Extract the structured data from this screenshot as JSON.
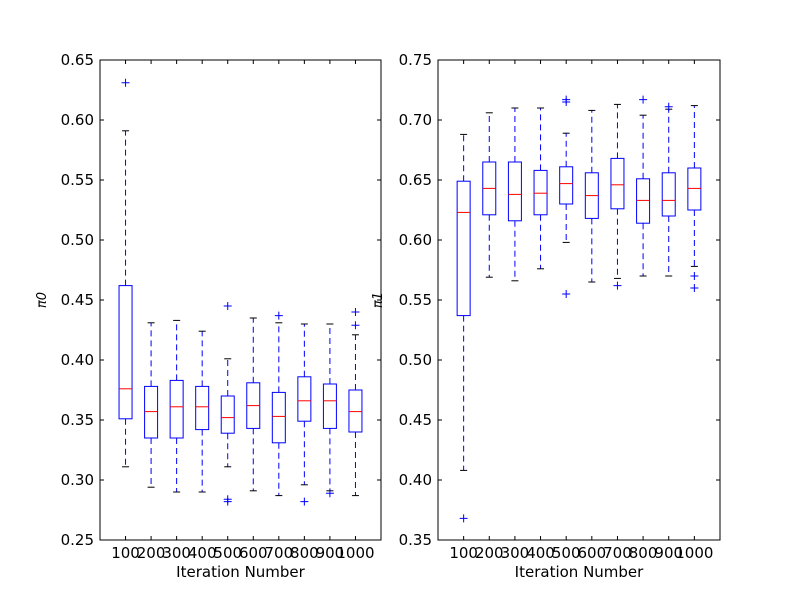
{
  "chart_data": [
    {
      "type": "boxplot",
      "xlabel": "Iteration Number",
      "ylabel": "π0",
      "ylim": [
        0.25,
        0.65
      ],
      "yticks": [
        "0.25",
        "0.30",
        "0.35",
        "0.40",
        "0.45",
        "0.50",
        "0.55",
        "0.60",
        "0.65"
      ],
      "categories": [
        "100",
        "200",
        "300",
        "400",
        "500",
        "600",
        "700",
        "800",
        "900",
        "1000"
      ],
      "grid": false,
      "colors": {
        "box": "#0000ff",
        "median": "#ff0000",
        "cap": "#000000",
        "flier": "#0000ff"
      },
      "boxes": [
        {
          "whislo": 0.311,
          "q1": 0.351,
          "med": 0.376,
          "q3": 0.462,
          "whishi": 0.591,
          "fliers": [
            0.631
          ]
        },
        {
          "whislo": 0.294,
          "q1": 0.335,
          "med": 0.357,
          "q3": 0.378,
          "whishi": 0.431,
          "fliers": []
        },
        {
          "whislo": 0.29,
          "q1": 0.335,
          "med": 0.361,
          "q3": 0.383,
          "whishi": 0.433,
          "fliers": []
        },
        {
          "whislo": 0.29,
          "q1": 0.342,
          "med": 0.361,
          "q3": 0.378,
          "whishi": 0.424,
          "fliers": []
        },
        {
          "whislo": 0.311,
          "q1": 0.339,
          "med": 0.352,
          "q3": 0.37,
          "whishi": 0.401,
          "fliers": [
            0.445,
            0.284,
            0.282
          ]
        },
        {
          "whislo": 0.291,
          "q1": 0.343,
          "med": 0.362,
          "q3": 0.381,
          "whishi": 0.435,
          "fliers": []
        },
        {
          "whislo": 0.287,
          "q1": 0.331,
          "med": 0.353,
          "q3": 0.373,
          "whishi": 0.431,
          "fliers": [
            0.437
          ]
        },
        {
          "whislo": 0.296,
          "q1": 0.349,
          "med": 0.366,
          "q3": 0.386,
          "whishi": 0.43,
          "fliers": [
            0.282
          ]
        },
        {
          "whislo": 0.291,
          "q1": 0.343,
          "med": 0.366,
          "q3": 0.38,
          "whishi": 0.43,
          "fliers": [
            0.289
          ]
        },
        {
          "whislo": 0.287,
          "q1": 0.34,
          "med": 0.357,
          "q3": 0.375,
          "whishi": 0.421,
          "fliers": [
            0.44,
            0.429
          ]
        }
      ]
    },
    {
      "type": "boxplot",
      "xlabel": "Iteration Number",
      "ylabel": "π1",
      "ylim": [
        0.35,
        0.75
      ],
      "yticks": [
        "0.35",
        "0.40",
        "0.45",
        "0.50",
        "0.55",
        "0.60",
        "0.65",
        "0.70",
        "0.75"
      ],
      "categories": [
        "100",
        "200",
        "300",
        "400",
        "500",
        "600",
        "700",
        "800",
        "900",
        "1000"
      ],
      "grid": false,
      "colors": {
        "box": "#0000ff",
        "median": "#ff0000",
        "cap": "#000000",
        "flier": "#0000ff"
      },
      "boxes": [
        {
          "whislo": 0.408,
          "q1": 0.537,
          "med": 0.623,
          "q3": 0.649,
          "whishi": 0.688,
          "fliers": [
            0.368
          ]
        },
        {
          "whislo": 0.569,
          "q1": 0.621,
          "med": 0.643,
          "q3": 0.665,
          "whishi": 0.706,
          "fliers": []
        },
        {
          "whislo": 0.566,
          "q1": 0.616,
          "med": 0.638,
          "q3": 0.665,
          "whishi": 0.71,
          "fliers": []
        },
        {
          "whislo": 0.576,
          "q1": 0.621,
          "med": 0.639,
          "q3": 0.658,
          "whishi": 0.71,
          "fliers": []
        },
        {
          "whislo": 0.598,
          "q1": 0.63,
          "med": 0.647,
          "q3": 0.661,
          "whishi": 0.689,
          "fliers": [
            0.717,
            0.715,
            0.555
          ]
        },
        {
          "whislo": 0.565,
          "q1": 0.618,
          "med": 0.637,
          "q3": 0.656,
          "whishi": 0.708,
          "fliers": []
        },
        {
          "whislo": 0.568,
          "q1": 0.626,
          "med": 0.646,
          "q3": 0.668,
          "whishi": 0.713,
          "fliers": [
            0.562
          ]
        },
        {
          "whislo": 0.57,
          "q1": 0.614,
          "med": 0.633,
          "q3": 0.651,
          "whishi": 0.704,
          "fliers": [
            0.717
          ]
        },
        {
          "whislo": 0.57,
          "q1": 0.62,
          "med": 0.633,
          "q3": 0.656,
          "whishi": 0.709,
          "fliers": [
            0.711
          ]
        },
        {
          "whislo": 0.578,
          "q1": 0.625,
          "med": 0.643,
          "q3": 0.66,
          "whishi": 0.712,
          "fliers": [
            0.57,
            0.56
          ]
        }
      ]
    }
  ]
}
